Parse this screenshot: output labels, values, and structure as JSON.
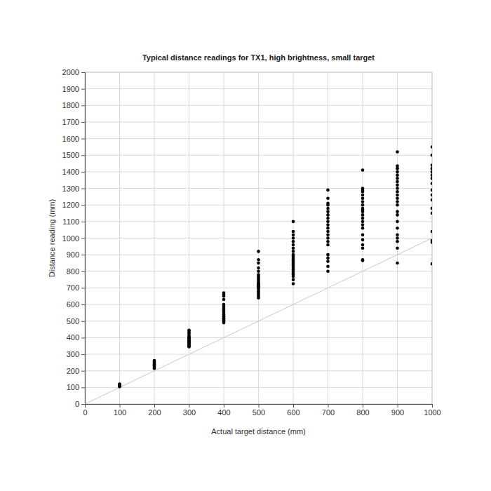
{
  "chart_data": {
    "type": "scatter",
    "title": "Typical distance readings for TX1, high brightness, small target",
    "x_label": "Actual target distance (mm)",
    "y_label": "Distance reading (mm)",
    "xlim": [
      0,
      1000
    ],
    "ylim": [
      0,
      2000
    ],
    "xticks": [
      0,
      100,
      200,
      300,
      400,
      500,
      600,
      700,
      800,
      900,
      1000
    ],
    "yticks": [
      0,
      100,
      200,
      300,
      400,
      500,
      600,
      700,
      800,
      900,
      1000,
      1100,
      1200,
      1300,
      1400,
      1500,
      1600,
      1700,
      1800,
      1900,
      2000
    ],
    "grid": true,
    "series": [
      {
        "type": "scatter",
        "color": "#000000",
        "marker": "circle",
        "x": [
          100,
          100,
          100,
          100,
          100,
          100,
          100,
          200,
          200,
          200,
          200,
          200,
          200,
          200,
          200,
          200,
          200,
          300,
          300,
          300,
          300,
          300,
          300,
          300,
          300,
          300,
          300,
          300,
          300,
          300,
          300,
          300,
          300,
          300,
          300,
          400,
          400,
          400,
          400,
          400,
          400,
          400,
          400,
          400,
          400,
          400,
          400,
          400,
          400,
          400,
          400,
          400,
          400,
          400,
          400,
          500,
          500,
          500,
          500,
          500,
          500,
          500,
          500,
          500,
          500,
          500,
          500,
          500,
          500,
          500,
          500,
          500,
          500,
          500,
          500,
          500,
          500,
          500,
          600,
          600,
          600,
          600,
          600,
          600,
          600,
          600,
          600,
          600,
          600,
          600,
          600,
          600,
          600,
          600,
          600,
          600,
          600,
          600,
          600,
          600,
          600,
          600,
          700,
          700,
          700,
          700,
          700,
          700,
          700,
          700,
          700,
          700,
          700,
          700,
          700,
          700,
          700,
          700,
          700,
          700,
          700,
          700,
          700,
          800,
          800,
          800,
          800,
          800,
          800,
          800,
          800,
          800,
          800,
          800,
          800,
          800,
          800,
          800,
          800,
          800,
          800,
          800,
          800,
          800,
          800,
          900,
          900,
          900,
          900,
          900,
          900,
          900,
          900,
          900,
          900,
          900,
          900,
          900,
          900,
          900,
          900,
          900,
          900,
          900,
          900,
          900,
          900,
          900,
          1000,
          1000,
          1000,
          1000,
          1000,
          1000,
          1000,
          1000,
          1000,
          1000,
          1000,
          1000,
          1000,
          1000,
          1000,
          1000,
          1000
        ],
        "values": [
          105,
          108,
          110,
          112,
          115,
          118,
          120,
          215,
          220,
          225,
          230,
          235,
          240,
          245,
          250,
          255,
          262,
          345,
          350,
          355,
          360,
          365,
          370,
          375,
          380,
          385,
          390,
          395,
          400,
          405,
          410,
          420,
          430,
          440,
          445,
          490,
          495,
          500,
          505,
          510,
          515,
          520,
          525,
          530,
          540,
          550,
          560,
          570,
          580,
          590,
          600,
          630,
          650,
          660,
          670,
          640,
          650,
          660,
          670,
          680,
          690,
          700,
          705,
          710,
          715,
          720,
          725,
          730,
          740,
          750,
          760,
          770,
          780,
          800,
          820,
          850,
          870,
          920,
          725,
          750,
          770,
          780,
          790,
          800,
          810,
          820,
          830,
          840,
          850,
          860,
          870,
          880,
          890,
          900,
          920,
          940,
          960,
          980,
          1000,
          1020,
          1040,
          1100,
          800,
          830,
          860,
          880,
          900,
          960,
          980,
          1000,
          1020,
          1040,
          1060,
          1080,
          1100,
          1120,
          1140,
          1160,
          1180,
          1200,
          1210,
          1240,
          1290,
          865,
          870,
          940,
          960,
          990,
          1020,
          1060,
          1080,
          1100,
          1120,
          1140,
          1160,
          1170,
          1180,
          1200,
          1220,
          1240,
          1260,
          1280,
          1290,
          1300,
          1410,
          850,
          940,
          980,
          1000,
          1020,
          1060,
          1100,
          1140,
          1160,
          1200,
          1220,
          1240,
          1260,
          1280,
          1300,
          1320,
          1340,
          1360,
          1380,
          1400,
          1420,
          1435,
          1520,
          845,
          975,
          985,
          1040,
          1150,
          1180,
          1230,
          1260,
          1290,
          1330,
          1360,
          1380,
          1400,
          1420,
          1440,
          1500,
          1550
        ]
      },
      {
        "type": "line",
        "color": "#c8c8c8",
        "line_style": "solid",
        "x": [
          0,
          1000
        ],
        "values": [
          0,
          1000
        ]
      }
    ]
  }
}
